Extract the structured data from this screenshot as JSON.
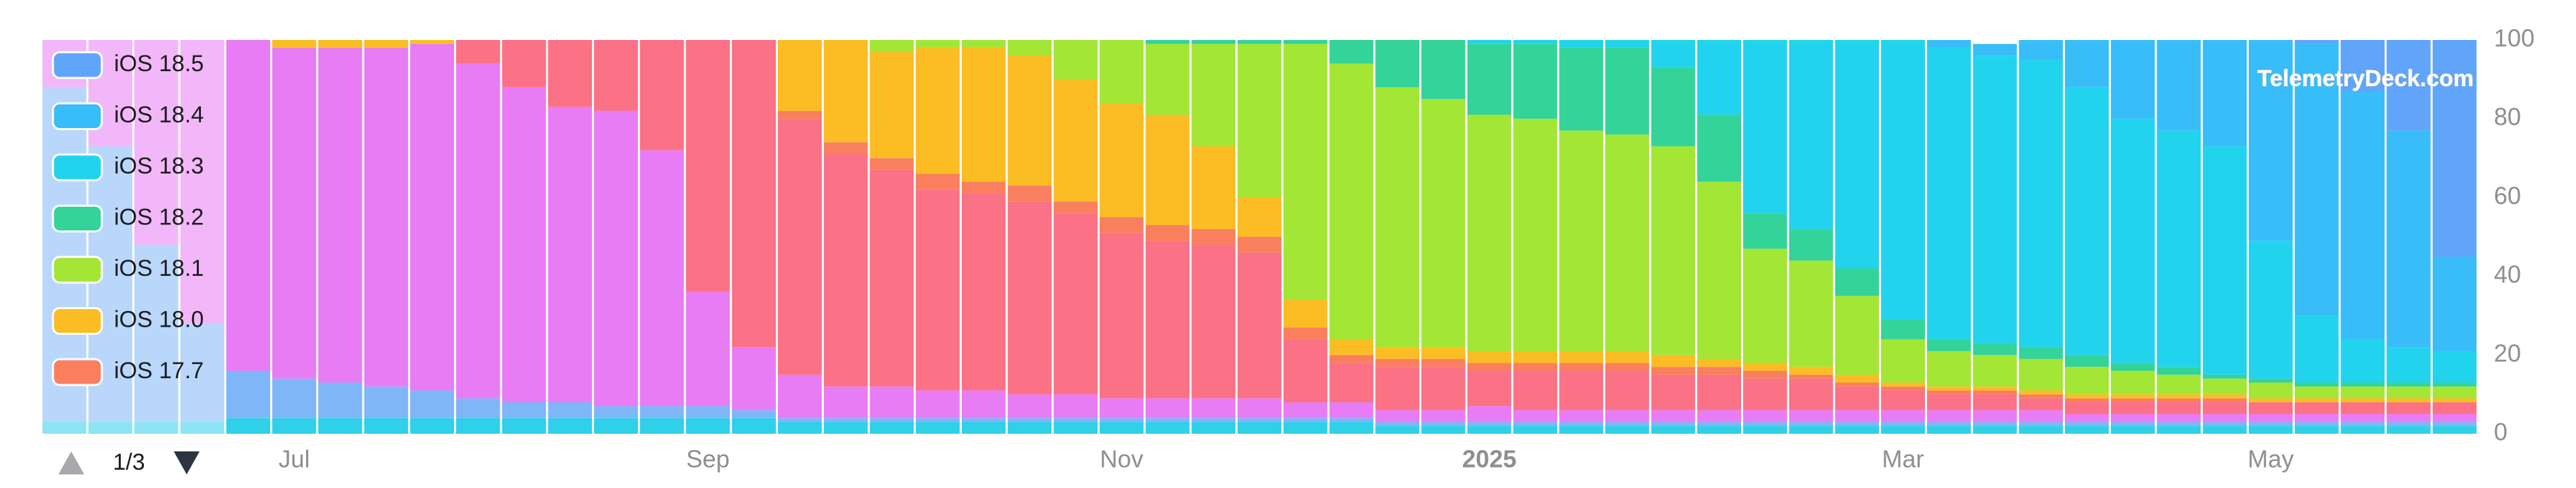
{
  "chart_data": {
    "type": "stacked_bar",
    "watermark": "TelemetryDeck.com",
    "legend_page": "1/3",
    "categories": [
      null,
      null,
      null,
      null,
      null,
      "Jul",
      null,
      null,
      null,
      null,
      null,
      null,
      null,
      null,
      "Sep",
      null,
      null,
      null,
      null,
      null,
      null,
      null,
      null,
      "Nov",
      null,
      null,
      null,
      null,
      null,
      null,
      null,
      "2025",
      null,
      null,
      null,
      null,
      null,
      null,
      null,
      null,
      "Mar",
      null,
      null,
      null,
      null,
      null,
      null,
      null,
      "May",
      null,
      null,
      null,
      null
    ],
    "ylim": [
      0,
      100
    ],
    "yticks": [
      0,
      20,
      40,
      60,
      80,
      100
    ],
    "series": [
      {
        "color": "#2fd0e8",
        "values": [
          3,
          3,
          3,
          3,
          4,
          4,
          4,
          4,
          4,
          4,
          4,
          4,
          4,
          4,
          4,
          4,
          3,
          3,
          3,
          3,
          3,
          3,
          3,
          3,
          3,
          3,
          3,
          3,
          3,
          2,
          2,
          2,
          2,
          2,
          2,
          2,
          2,
          2,
          2,
          2,
          2,
          2,
          2,
          2,
          2,
          2,
          2,
          2,
          2,
          2,
          2,
          2,
          2
        ]
      },
      {
        "color": "#7fb6f8",
        "values": [
          85,
          70,
          45,
          25,
          12,
          10,
          9,
          8,
          7,
          5,
          4,
          4,
          3,
          3,
          3,
          2,
          1,
          1,
          1,
          1,
          1,
          1,
          1,
          1,
          1,
          1,
          1,
          1,
          1,
          1,
          1,
          1,
          1,
          1,
          1,
          1,
          1,
          1,
          1,
          1,
          1,
          1,
          1,
          1,
          1,
          1,
          1,
          1,
          1,
          1,
          1,
          1,
          1
        ]
      },
      {
        "color": "#e77cf5",
        "values": [
          12,
          27,
          52,
          72,
          84,
          84,
          85,
          86,
          88,
          85,
          80,
          75,
          75,
          65,
          29,
          16,
          11,
          8,
          8,
          7,
          7,
          6,
          6,
          5,
          5,
          5,
          5,
          4,
          4,
          3,
          3,
          4,
          3,
          3,
          3,
          3,
          3,
          3,
          3,
          3,
          3,
          3,
          3,
          3,
          2,
          2,
          2,
          2,
          2,
          2,
          2,
          2,
          2
        ]
      },
      {
        "color": "#fb7185",
        "values": [
          0,
          0,
          0,
          0,
          0,
          0,
          0,
          0,
          0,
          6,
          12,
          17,
          18,
          28,
          64,
          78,
          65,
          59,
          55,
          51,
          50,
          49,
          46,
          42,
          40,
          39,
          37,
          16,
          10,
          11,
          11,
          9,
          10,
          10,
          10,
          9,
          9,
          8,
          8,
          6,
          5,
          4,
          4,
          3,
          3,
          3,
          3,
          3,
          3,
          3,
          3,
          3,
          3
        ]
      },
      {
        "name": "iOS 17.7",
        "color": "#f97f5f",
        "values": [
          0,
          0,
          0,
          0,
          0,
          0,
          0,
          0,
          0,
          0,
          0,
          0,
          0,
          0,
          0,
          0,
          2,
          3,
          3,
          4,
          3,
          4,
          3,
          4,
          4,
          4,
          4,
          3,
          2,
          2,
          2,
          2,
          2,
          2,
          2,
          2,
          2,
          2,
          1,
          1,
          1,
          1,
          1,
          1,
          1,
          1,
          1,
          1,
          0,
          0,
          0,
          0,
          0
        ]
      },
      {
        "name": "iOS 18.0",
        "color": "#fbbd23",
        "values": [
          0,
          0,
          0,
          0,
          0,
          2,
          2,
          2,
          1,
          0,
          0,
          0,
          0,
          0,
          0,
          0,
          18,
          26,
          27,
          32,
          34,
          33,
          31,
          29,
          28,
          21,
          10,
          7,
          4,
          3,
          3,
          3,
          3,
          3,
          3,
          3,
          2,
          2,
          2,
          2,
          1,
          1,
          1,
          1,
          1,
          1,
          1,
          1,
          1,
          1,
          1,
          1,
          1
        ]
      },
      {
        "name": "iOS 18.1",
        "color": "#a3e635",
        "values": [
          0,
          0,
          0,
          0,
          0,
          0,
          0,
          0,
          0,
          0,
          0,
          0,
          0,
          0,
          0,
          0,
          0,
          0,
          3,
          2,
          2,
          4,
          10,
          16,
          18,
          26,
          39,
          65,
          70,
          66,
          63,
          60,
          59,
          56,
          55,
          53,
          45,
          29,
          27,
          20,
          11,
          9,
          8,
          8,
          7,
          6,
          5,
          4,
          4,
          3,
          3,
          3,
          3
        ]
      },
      {
        "name": "iOS 18.2",
        "color": "#34d399",
        "values": [
          0,
          0,
          0,
          0,
          0,
          0,
          0,
          0,
          0,
          0,
          0,
          0,
          0,
          0,
          0,
          0,
          0,
          0,
          0,
          0,
          0,
          0,
          0,
          0,
          1,
          1,
          1,
          1,
          6,
          12,
          15,
          18,
          19,
          21,
          22,
          20,
          17,
          9,
          8,
          7,
          5,
          3,
          3,
          3,
          3,
          2,
          2,
          1,
          1,
          1,
          1,
          1,
          1
        ]
      },
      {
        "name": "iOS 18.3",
        "color": "#22d3ee",
        "values": [
          0,
          0,
          0,
          0,
          0,
          0,
          0,
          0,
          0,
          0,
          0,
          0,
          0,
          0,
          0,
          0,
          0,
          0,
          0,
          0,
          0,
          0,
          0,
          0,
          0,
          0,
          0,
          0,
          0,
          0,
          0,
          1,
          1,
          2,
          2,
          7,
          19,
          44,
          48,
          58,
          71,
          74,
          73,
          73,
          68,
          62,
          60,
          58,
          35,
          17,
          11,
          9,
          8
        ]
      },
      {
        "name": "iOS 18.4",
        "color": "#38bdf8",
        "values": [
          0,
          0,
          0,
          0,
          0,
          0,
          0,
          0,
          0,
          0,
          0,
          0,
          0,
          0,
          0,
          0,
          0,
          0,
          0,
          0,
          0,
          0,
          0,
          0,
          0,
          0,
          0,
          0,
          0,
          0,
          0,
          0,
          0,
          0,
          0,
          0,
          0,
          0,
          0,
          0,
          0,
          2,
          3,
          5,
          12,
          20,
          23,
          27,
          51,
          69,
          63,
          55,
          24
        ]
      },
      {
        "name": "iOS 18.5",
        "color": "#60a5fa",
        "values": [
          0,
          0,
          0,
          0,
          0,
          0,
          0,
          0,
          0,
          0,
          0,
          0,
          0,
          0,
          0,
          0,
          0,
          0,
          0,
          0,
          0,
          0,
          0,
          0,
          0,
          0,
          0,
          0,
          0,
          0,
          0,
          0,
          0,
          0,
          0,
          0,
          0,
          0,
          0,
          0,
          0,
          0,
          0,
          0,
          0,
          0,
          0,
          0,
          0,
          1,
          13,
          23,
          55
        ]
      }
    ]
  }
}
